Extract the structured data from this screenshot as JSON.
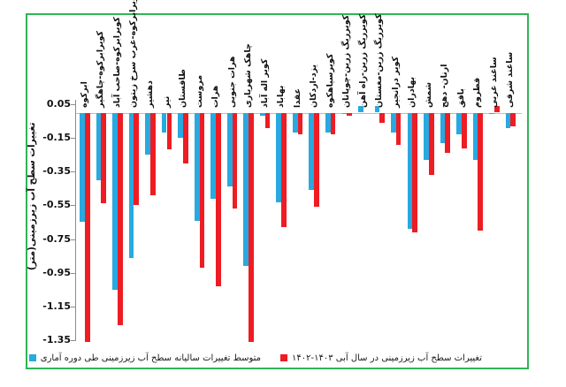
{
  "frame": {
    "border_color": "#2fb457"
  },
  "colors": {
    "blue_series": "#29a9e0",
    "red_series": "#ee1c23",
    "axis_gray": "#8c8c8c"
  },
  "y_axis": {
    "title": "تغییرات سطح آب زیرزمینی(متر)",
    "tick_labels": [
      "0.05",
      "-0.15",
      "-0.35",
      "-0.55",
      "-0.75",
      "-0.95",
      "-1.15",
      "-1.35"
    ]
  },
  "legend": {
    "red_label": "تغییرات سطح آب زیرزمینی در سال آبی ۱۴۰۲‎-‎۱۴۰۳",
    "blue_label": "متوسط تغییرات سالیانه سطح آب زیرزمینی طی دوره آماری"
  },
  "chart_data": {
    "type": "bar",
    "title": "",
    "xlabel": "",
    "ylabel": "تغییرات سطح آب زیرزمینی(متر)",
    "ylim": [
      -1.38,
      0.07
    ],
    "yticks": [
      0.05,
      -0.15,
      -0.35,
      -0.55,
      -0.75,
      -0.95,
      -1.15,
      -1.35
    ],
    "grid": false,
    "legend_position": "bottom",
    "categories": [
      "ابرکوه",
      "کویرابرکوه-چاهگیر",
      "کویرابرکوه-صاحب آباد",
      "کویرابرکوه-غرب سرخ زیتون",
      "دهشیر",
      "نیر",
      "طاقستان",
      "مروست",
      "هرات",
      "هرات جنوبی",
      "چاهک شهریاری",
      "کویر اله آباد",
      "بهاباد",
      "عقدا",
      "یزد-اردکان",
      "کویرسیاهکوه",
      "کویرریگ زرین-چوپانان",
      "کویرریگ زرین-راه آهن",
      "کویرریگ زرین-مغستان",
      "کویر درانجیر",
      "بهادران",
      "شمش",
      "ارنان- دهج",
      "بافق",
      "قطروم",
      "ساغند غربی",
      "ساغند شرقی"
    ],
    "series": [
      {
        "name": "متوسط تغییرات سالیانه سطح آب زیرزمینی طی دوره آماری",
        "color": "#29a9e0",
        "values": [
          -0.65,
          -0.4,
          -1.05,
          -0.86,
          -0.25,
          -0.12,
          -0.15,
          -0.64,
          -0.51,
          -0.44,
          -0.91,
          -0.02,
          -0.53,
          -0.12,
          -0.46,
          -0.12,
          -0.01,
          0.04,
          0.04,
          -0.12,
          -0.69,
          -0.28,
          -0.18,
          -0.13,
          -0.28,
          -0.01,
          -0.09
        ]
      },
      {
        "name": "تغییرات سطح آب زیرزمینی در سال آبی ۱۴۰۲‎-‎۱۴۰۳",
        "color": "#ee1c23",
        "values": [
          -1.36,
          -0.54,
          -1.26,
          -0.55,
          -0.49,
          -0.22,
          -0.3,
          -0.92,
          -1.03,
          -0.57,
          -1.36,
          -0.09,
          -0.68,
          -0.13,
          -0.56,
          -0.13,
          -0.02,
          0.0,
          -0.06,
          -0.19,
          -0.71,
          -0.37,
          -0.24,
          -0.21,
          -0.7,
          0.04,
          -0.08
        ]
      }
    ]
  }
}
